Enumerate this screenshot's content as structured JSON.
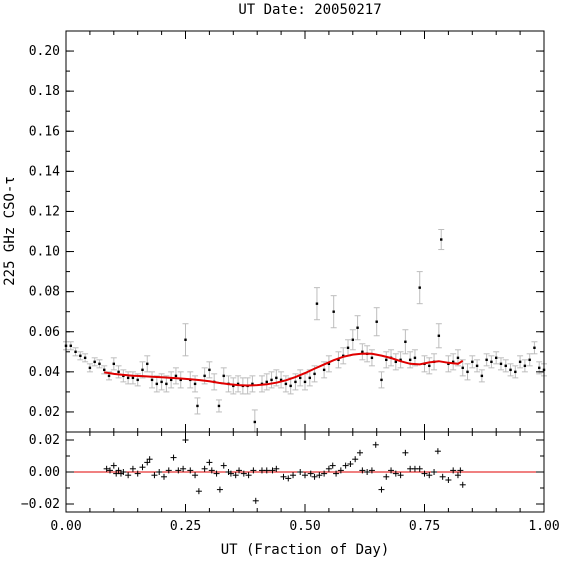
{
  "chart_data": [
    {
      "type": "scatter",
      "panel": "main",
      "title": "UT Date: 20050217",
      "xlabel": "",
      "ylabel": "225 GHz CSO-τ",
      "xlim": [
        0.0,
        1.0
      ],
      "ylim": [
        0.01,
        0.21
      ],
      "x_ticks": [
        0.0,
        0.25,
        0.5,
        0.75,
        1.0
      ],
      "y_ticks": [
        0.02,
        0.04,
        0.06,
        0.08,
        0.1,
        0.12,
        0.14,
        0.16,
        0.18,
        0.2
      ],
      "y_tick_labels": [
        "0.02",
        "0.04",
        "0.06",
        "0.08",
        "0.10",
        "0.12",
        "0.14",
        "0.16",
        "0.18",
        "0.20"
      ],
      "series": [
        {
          "kind": "measurements_with_errors",
          "points": [
            [
              0.0,
              0.053,
              0.002
            ],
            [
              0.01,
              0.053,
              0.002
            ],
            [
              0.02,
              0.05,
              0.002
            ],
            [
              0.03,
              0.048,
              0.002
            ],
            [
              0.04,
              0.047,
              0.002
            ],
            [
              0.05,
              0.042,
              0.002
            ],
            [
              0.06,
              0.045,
              0.002
            ],
            [
              0.07,
              0.044,
              0.002
            ],
            [
              0.08,
              0.041,
              0.002
            ],
            [
              0.09,
              0.038,
              0.002
            ],
            [
              0.1,
              0.044,
              0.003
            ],
            [
              0.11,
              0.04,
              0.003
            ],
            [
              0.12,
              0.038,
              0.003
            ],
            [
              0.13,
              0.037,
              0.003
            ],
            [
              0.14,
              0.037,
              0.003
            ],
            [
              0.15,
              0.036,
              0.003
            ],
            [
              0.16,
              0.041,
              0.004
            ],
            [
              0.17,
              0.044,
              0.004
            ],
            [
              0.18,
              0.036,
              0.004
            ],
            [
              0.19,
              0.034,
              0.004
            ],
            [
              0.2,
              0.035,
              0.004
            ],
            [
              0.21,
              0.034,
              0.004
            ],
            [
              0.22,
              0.036,
              0.004
            ],
            [
              0.23,
              0.038,
              0.004
            ],
            [
              0.24,
              0.036,
              0.004
            ],
            [
              0.25,
              0.056,
              0.008
            ],
            [
              0.26,
              0.036,
              0.004
            ],
            [
              0.27,
              0.034,
              0.004
            ],
            [
              0.275,
              0.023,
              0.004
            ],
            [
              0.29,
              0.038,
              0.004
            ],
            [
              0.3,
              0.041,
              0.004
            ],
            [
              0.31,
              0.035,
              0.004
            ],
            [
              0.32,
              0.023,
              0.003
            ],
            [
              0.33,
              0.038,
              0.004
            ],
            [
              0.34,
              0.034,
              0.004
            ],
            [
              0.35,
              0.033,
              0.004
            ],
            [
              0.36,
              0.034,
              0.004
            ],
            [
              0.37,
              0.033,
              0.004
            ],
            [
              0.38,
              0.033,
              0.004
            ],
            [
              0.39,
              0.034,
              0.004
            ],
            [
              0.395,
              0.015,
              0.006
            ],
            [
              0.41,
              0.034,
              0.004
            ],
            [
              0.42,
              0.035,
              0.004
            ],
            [
              0.43,
              0.036,
              0.004
            ],
            [
              0.44,
              0.037,
              0.004
            ],
            [
              0.45,
              0.036,
              0.004
            ],
            [
              0.46,
              0.034,
              0.004
            ],
            [
              0.47,
              0.033,
              0.004
            ],
            [
              0.48,
              0.035,
              0.004
            ],
            [
              0.49,
              0.037,
              0.004
            ],
            [
              0.5,
              0.035,
              0.004
            ],
            [
              0.51,
              0.037,
              0.004
            ],
            [
              0.52,
              0.039,
              0.004
            ],
            [
              0.525,
              0.074,
              0.008
            ],
            [
              0.54,
              0.041,
              0.004
            ],
            [
              0.55,
              0.044,
              0.004
            ],
            [
              0.56,
              0.07,
              0.008
            ],
            [
              0.57,
              0.046,
              0.004
            ],
            [
              0.58,
              0.048,
              0.004
            ],
            [
              0.59,
              0.052,
              0.004
            ],
            [
              0.6,
              0.056,
              0.005
            ],
            [
              0.61,
              0.062,
              0.006
            ],
            [
              0.62,
              0.05,
              0.004
            ],
            [
              0.63,
              0.049,
              0.004
            ],
            [
              0.64,
              0.047,
              0.004
            ],
            [
              0.65,
              0.065,
              0.007
            ],
            [
              0.66,
              0.036,
              0.004
            ],
            [
              0.67,
              0.046,
              0.004
            ],
            [
              0.68,
              0.047,
              0.004
            ],
            [
              0.69,
              0.045,
              0.004
            ],
            [
              0.7,
              0.046,
              0.004
            ],
            [
              0.71,
              0.055,
              0.006
            ],
            [
              0.72,
              0.046,
              0.004
            ],
            [
              0.73,
              0.047,
              0.004
            ],
            [
              0.74,
              0.082,
              0.008
            ],
            [
              0.75,
              0.044,
              0.004
            ],
            [
              0.76,
              0.043,
              0.004
            ],
            [
              0.77,
              0.045,
              0.004
            ],
            [
              0.78,
              0.058,
              0.006
            ],
            [
              0.785,
              0.106,
              0.005
            ],
            [
              0.8,
              0.044,
              0.004
            ],
            [
              0.81,
              0.045,
              0.004
            ],
            [
              0.82,
              0.047,
              0.004
            ],
            [
              0.83,
              0.042,
              0.004
            ],
            [
              0.84,
              0.04,
              0.004
            ],
            [
              0.85,
              0.045,
              0.003
            ],
            [
              0.86,
              0.043,
              0.003
            ],
            [
              0.87,
              0.038,
              0.003
            ],
            [
              0.88,
              0.046,
              0.003
            ],
            [
              0.89,
              0.045,
              0.003
            ],
            [
              0.9,
              0.047,
              0.003
            ],
            [
              0.91,
              0.044,
              0.003
            ],
            [
              0.92,
              0.043,
              0.003
            ],
            [
              0.93,
              0.041,
              0.003
            ],
            [
              0.94,
              0.04,
              0.003
            ],
            [
              0.95,
              0.045,
              0.003
            ],
            [
              0.96,
              0.043,
              0.003
            ],
            [
              0.97,
              0.046,
              0.003
            ],
            [
              0.98,
              0.052,
              0.003
            ],
            [
              0.99,
              0.042,
              0.003
            ],
            [
              1.0,
              0.041,
              0.003
            ]
          ]
        },
        {
          "kind": "fit_curve",
          "color": "#e00000",
          "x": [
            0.08,
            0.1,
            0.12,
            0.14,
            0.16,
            0.18,
            0.2,
            0.22,
            0.24,
            0.26,
            0.28,
            0.3,
            0.32,
            0.34,
            0.36,
            0.38,
            0.4,
            0.42,
            0.44,
            0.46,
            0.48,
            0.5,
            0.52,
            0.54,
            0.56,
            0.58,
            0.6,
            0.62,
            0.64,
            0.66,
            0.68,
            0.7,
            0.72,
            0.74,
            0.76,
            0.78,
            0.8,
            0.82,
            0.83
          ],
          "y": [
            0.0398,
            0.039,
            0.0385,
            0.0381,
            0.0379,
            0.0376,
            0.0373,
            0.037,
            0.0367,
            0.0363,
            0.0359,
            0.0353,
            0.0345,
            0.0339,
            0.0334,
            0.0332,
            0.0334,
            0.0338,
            0.0346,
            0.0358,
            0.0374,
            0.0394,
            0.0416,
            0.0437,
            0.0458,
            0.0475,
            0.0486,
            0.0491,
            0.049,
            0.0481,
            0.0469,
            0.0453,
            0.044,
            0.0437,
            0.0447,
            0.0453,
            0.0445,
            0.044,
            0.0455
          ]
        }
      ]
    },
    {
      "type": "scatter",
      "panel": "residuals",
      "xlabel": "UT (Fraction of Day)",
      "ylabel": "",
      "xlim": [
        0.0,
        1.0
      ],
      "ylim": [
        -0.025,
        0.025
      ],
      "x_ticks": [
        0.0,
        0.25,
        0.5,
        0.75,
        1.0
      ],
      "x_tick_labels": [
        "0.00",
        "0.25",
        "0.50",
        "0.75",
        "1.00"
      ],
      "y_ticks": [
        -0.02,
        0.0,
        0.02
      ],
      "y_tick_labels": [
        "−0.02",
        "0.00",
        "0.02"
      ],
      "zero_line_color": "#e00000",
      "points": [
        [
          0.085,
          0.002
        ],
        [
          0.092,
          0.001
        ],
        [
          0.1,
          0.004
        ],
        [
          0.105,
          -0.001
        ],
        [
          0.11,
          0.001
        ],
        [
          0.115,
          -0.001
        ],
        [
          0.12,
          0.0
        ],
        [
          0.13,
          -0.002
        ],
        [
          0.14,
          0.002
        ],
        [
          0.15,
          -0.001
        ],
        [
          0.16,
          0.003
        ],
        [
          0.17,
          0.006
        ],
        [
          0.175,
          0.008
        ],
        [
          0.185,
          -0.002
        ],
        [
          0.195,
          0.0
        ],
        [
          0.205,
          -0.003
        ],
        [
          0.215,
          0.001
        ],
        [
          0.225,
          0.009
        ],
        [
          0.235,
          0.001
        ],
        [
          0.245,
          0.002
        ],
        [
          0.25,
          0.02
        ],
        [
          0.26,
          0.001
        ],
        [
          0.27,
          -0.002
        ],
        [
          0.278,
          -0.012
        ],
        [
          0.29,
          0.002
        ],
        [
          0.3,
          0.006
        ],
        [
          0.305,
          0.001
        ],
        [
          0.315,
          -0.001
        ],
        [
          0.322,
          -0.011
        ],
        [
          0.33,
          0.004
        ],
        [
          0.34,
          0.0
        ],
        [
          0.345,
          -0.001
        ],
        [
          0.355,
          -0.002
        ],
        [
          0.362,
          0.001
        ],
        [
          0.372,
          -0.001
        ],
        [
          0.382,
          -0.002
        ],
        [
          0.392,
          0.001
        ],
        [
          0.397,
          -0.018
        ],
        [
          0.41,
          0.001
        ],
        [
          0.42,
          0.001
        ],
        [
          0.432,
          0.001
        ],
        [
          0.44,
          0.002
        ],
        [
          0.455,
          -0.003
        ],
        [
          0.465,
          -0.004
        ],
        [
          0.475,
          -0.002
        ],
        [
          0.49,
          0.0
        ],
        [
          0.5,
          -0.002
        ],
        [
          0.512,
          -0.001
        ],
        [
          0.52,
          -0.003
        ],
        [
          0.53,
          -0.002
        ],
        [
          0.54,
          -0.001
        ],
        [
          0.55,
          0.002
        ],
        [
          0.558,
          0.004
        ],
        [
          0.565,
          -0.001
        ],
        [
          0.575,
          0.001
        ],
        [
          0.585,
          0.004
        ],
        [
          0.595,
          0.005
        ],
        [
          0.605,
          0.008
        ],
        [
          0.615,
          0.012
        ],
        [
          0.62,
          0.001
        ],
        [
          0.63,
          0.0
        ],
        [
          0.64,
          0.001
        ],
        [
          0.648,
          0.017
        ],
        [
          0.66,
          -0.011
        ],
        [
          0.67,
          -0.003
        ],
        [
          0.68,
          0.001
        ],
        [
          0.69,
          -0.001
        ],
        [
          0.7,
          -0.002
        ],
        [
          0.71,
          0.012
        ],
        [
          0.72,
          0.002
        ],
        [
          0.73,
          0.002
        ],
        [
          0.74,
          0.002
        ],
        [
          0.75,
          -0.001
        ],
        [
          0.76,
          -0.002
        ],
        [
          0.77,
          0.0
        ],
        [
          0.778,
          0.013
        ],
        [
          0.788,
          -0.003
        ],
        [
          0.8,
          -0.005
        ],
        [
          0.81,
          0.001
        ],
        [
          0.82,
          -0.002
        ],
        [
          0.825,
          0.001
        ],
        [
          0.83,
          -0.008
        ]
      ]
    }
  ]
}
